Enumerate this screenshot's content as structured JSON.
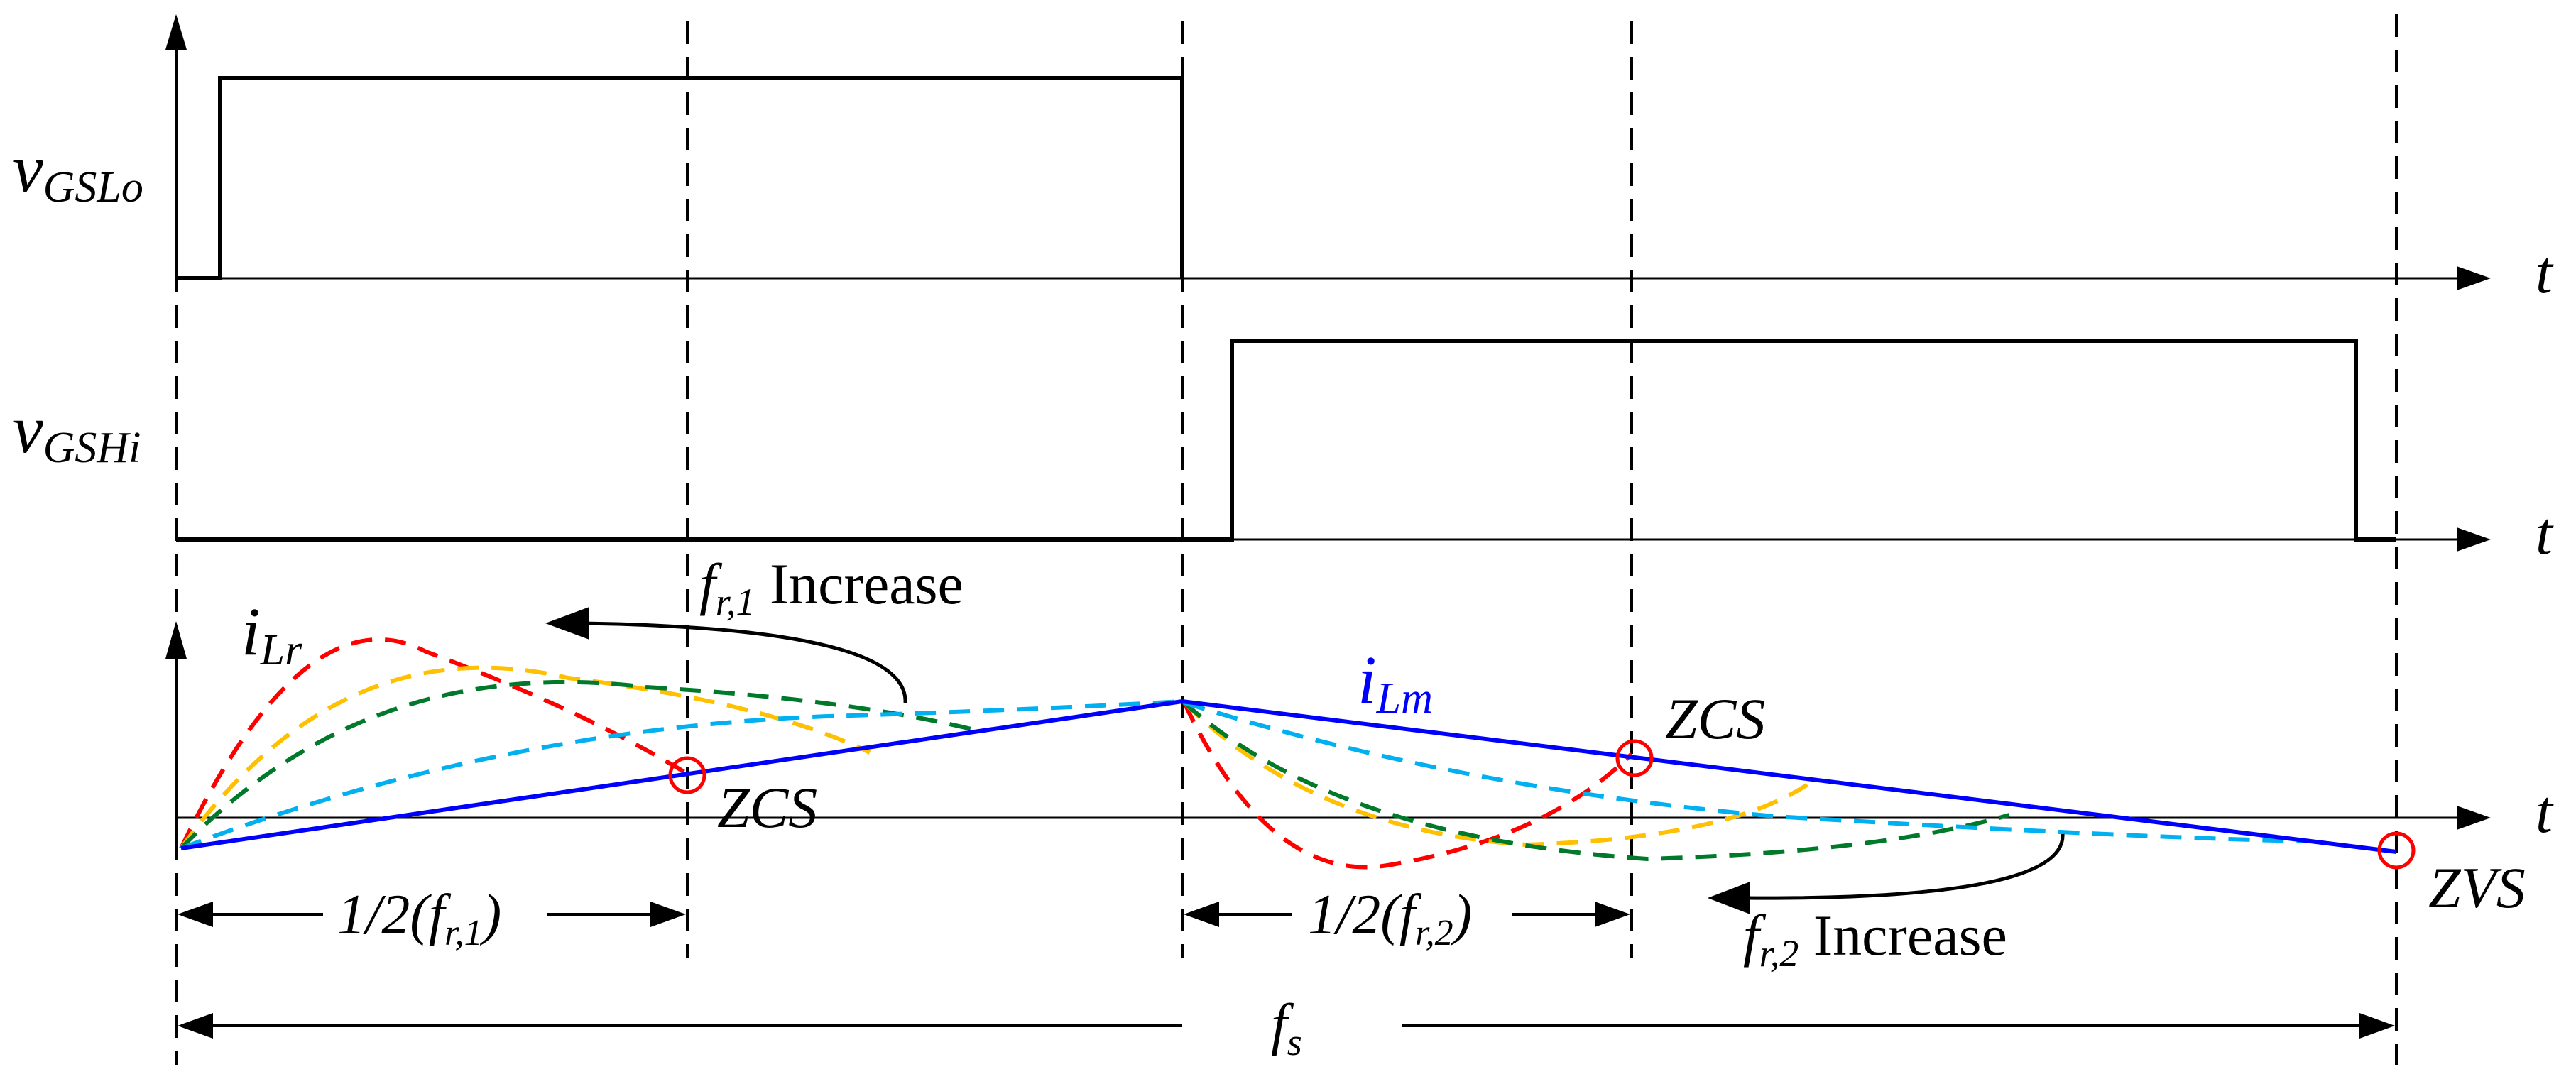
{
  "signals": {
    "gate_low": {
      "symbol": "v",
      "subscript": "GSLo"
    },
    "gate_high": {
      "symbol": "v",
      "subscript": "GSHi"
    },
    "resonant_current": {
      "symbol": "i",
      "subscript": "Lr"
    },
    "magnetizing_current": {
      "symbol": "i",
      "subscript": "Lm"
    }
  },
  "axes": {
    "time_label": "t"
  },
  "annotations": {
    "zcs_1": "ZCS",
    "zcs_2": "ZCS",
    "zvs": "ZVS",
    "fr1_increase": {
      "symbol": "f",
      "subscript": "r,1",
      "text": " Increase"
    },
    "fr2_increase": {
      "symbol": "f",
      "subscript": "r,2",
      "text": " Increase"
    },
    "half_period_1": {
      "prefix": "1/2(",
      "symbol": "f",
      "subscript": "r,1",
      "suffix": ")"
    },
    "half_period_2": {
      "prefix": "1/2(",
      "symbol": "f",
      "subscript": "r,2",
      "suffix": ")"
    },
    "switching_freq": {
      "symbol": "f",
      "subscript": "s"
    }
  },
  "colors": {
    "axis": "#000000",
    "magnetizing_current": "#0000ff",
    "resonant_red": "#ff0000",
    "resonant_orange": "#ffc000",
    "resonant_green": "#007a2a",
    "resonant_cyan": "#00b0f0",
    "marker": "#ff0000"
  }
}
